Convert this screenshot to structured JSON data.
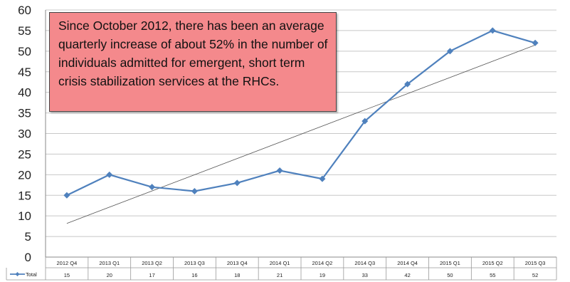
{
  "chart_data": {
    "type": "line",
    "categories": [
      "2012 Q4",
      "2013 Q1",
      "2013 Q2",
      "2013 Q3",
      "2013 Q4",
      "2014 Q1",
      "2014 Q2",
      "2014 Q3",
      "2014 Q4",
      "2015 Q1",
      "2015 Q2",
      "2015 Q3"
    ],
    "series": [
      {
        "name": "Total",
        "values": [
          15,
          20,
          17,
          16,
          18,
          21,
          19,
          33,
          42,
          50,
          55,
          52
        ],
        "color": "#4f81bd"
      }
    ],
    "trendline": {
      "type": "linear",
      "color": "#555555"
    },
    "ylim": [
      0,
      60
    ],
    "yticks": [
      0,
      5,
      10,
      15,
      20,
      25,
      30,
      35,
      40,
      45,
      50,
      55,
      60
    ],
    "grid": true,
    "data_table": true,
    "annotation": "Since October 2012, there has been an average quarterly increase of about 52% in the number of individuals admitted for emergent, short term crisis stabilization services at the RHCs.",
    "annotation_color": "#f4898c"
  }
}
